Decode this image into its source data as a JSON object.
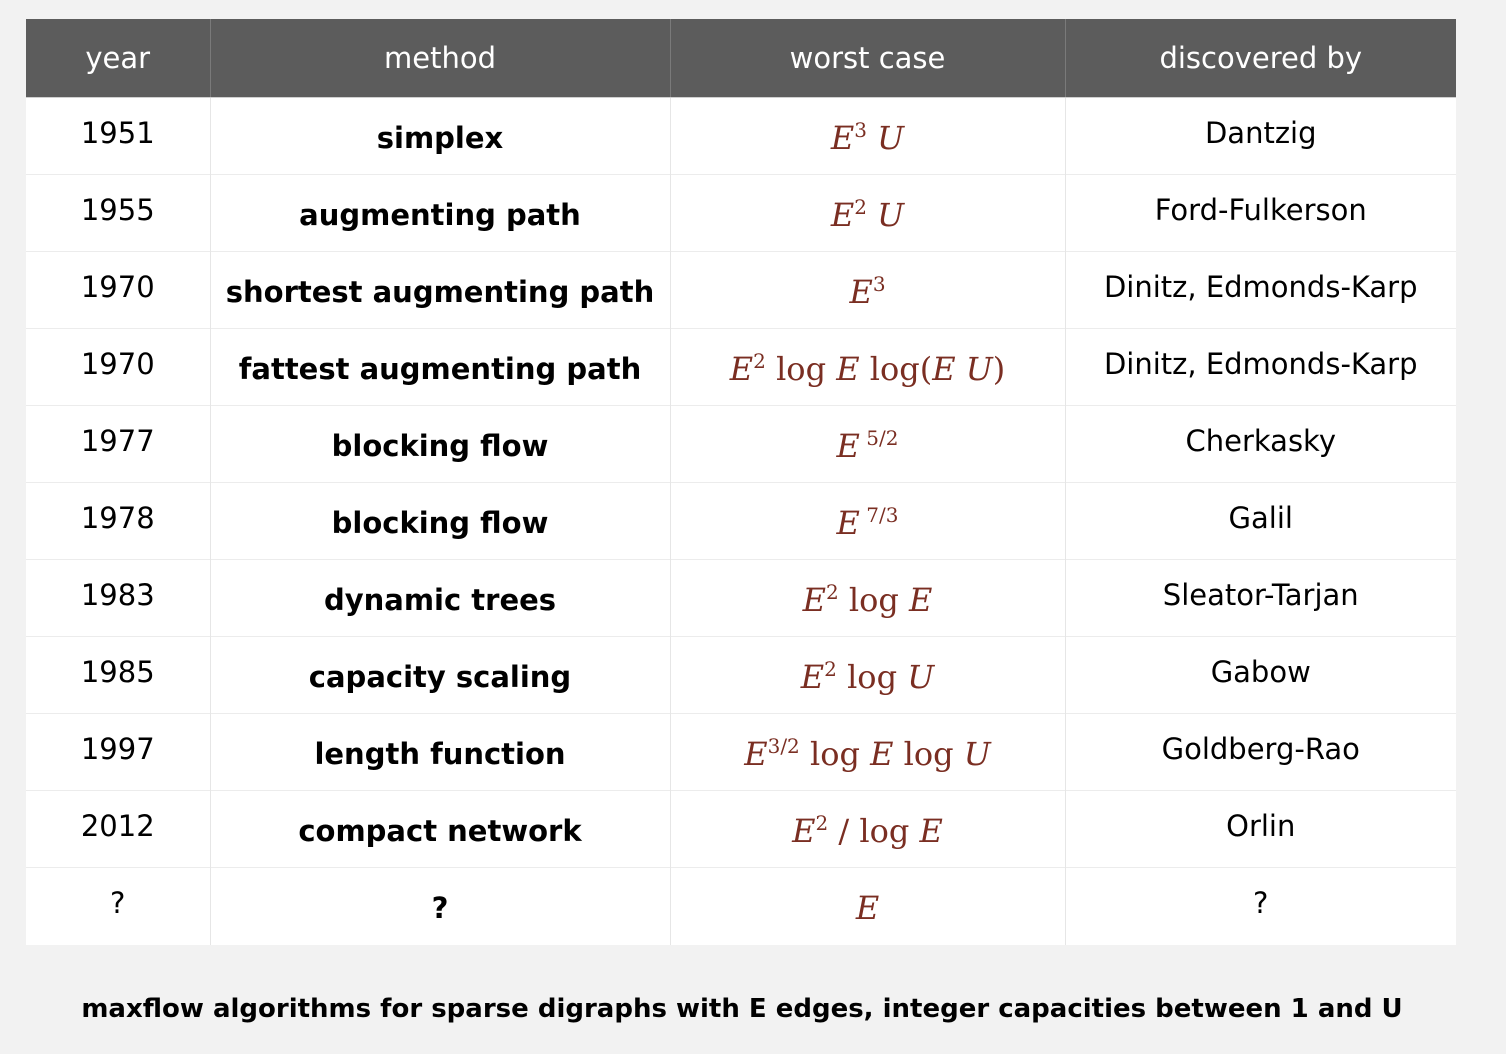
{
  "table": {
    "headers": [
      "year",
      "method",
      "worst case",
      "discovered by"
    ],
    "rows": [
      {
        "year": "1951",
        "method": "simplex",
        "worst_case": [
          {
            "t": "E",
            "i": true
          },
          {
            "t": "3",
            "s": true
          },
          {
            "t": " "
          },
          {
            "t": "U",
            "i": true
          }
        ],
        "discovered_by": "Dantzig"
      },
      {
        "year": "1955",
        "method": "augmenting path",
        "worst_case": [
          {
            "t": "E",
            "i": true
          },
          {
            "t": "2",
            "s": true
          },
          {
            "t": " "
          },
          {
            "t": "U",
            "i": true
          }
        ],
        "discovered_by": "Ford-Fulkerson"
      },
      {
        "year": "1970",
        "method": "shortest augmenting path",
        "worst_case": [
          {
            "t": "E",
            "i": true
          },
          {
            "t": "3",
            "s": true
          }
        ],
        "discovered_by": "Dinitz, Edmonds-Karp"
      },
      {
        "year": "1970",
        "method": "fattest augmenting path",
        "worst_case": [
          {
            "t": "E",
            "i": true
          },
          {
            "t": "2",
            "s": true
          },
          {
            "t": " log "
          },
          {
            "t": "E",
            "i": true
          },
          {
            "t": " log("
          },
          {
            "t": "E U",
            "i": true
          },
          {
            "t": ")"
          }
        ],
        "discovered_by": "Dinitz, Edmonds-Karp"
      },
      {
        "year": "1977",
        "method": "blocking flow",
        "worst_case": [
          {
            "t": "E",
            "i": true
          },
          {
            "t": " 5/2",
            "s": true
          }
        ],
        "discovered_by": "Cherkasky"
      },
      {
        "year": "1978",
        "method": "blocking flow",
        "worst_case": [
          {
            "t": "E",
            "i": true
          },
          {
            "t": " 7/3",
            "s": true
          }
        ],
        "discovered_by": "Galil"
      },
      {
        "year": "1983",
        "method": "dynamic trees",
        "worst_case": [
          {
            "t": "E",
            "i": true
          },
          {
            "t": "2",
            "s": true
          },
          {
            "t": " log "
          },
          {
            "t": "E",
            "i": true
          }
        ],
        "discovered_by": "Sleator-Tarjan"
      },
      {
        "year": "1985",
        "method": "capacity scaling",
        "worst_case": [
          {
            "t": "E",
            "i": true
          },
          {
            "t": "2",
            "s": true
          },
          {
            "t": " log "
          },
          {
            "t": "U",
            "i": true
          }
        ],
        "discovered_by": "Gabow"
      },
      {
        "year": "1997",
        "method": "length function",
        "worst_case": [
          {
            "t": "E",
            "i": true
          },
          {
            "t": "3/2",
            "s": true
          },
          {
            "t": " log "
          },
          {
            "t": "E",
            "i": true
          },
          {
            "t": " log "
          },
          {
            "t": "U",
            "i": true
          }
        ],
        "discovered_by": "Goldberg-Rao"
      },
      {
        "year": "2012",
        "method": "compact network",
        "worst_case": [
          {
            "t": "E",
            "i": true
          },
          {
            "t": "2",
            "s": true
          },
          {
            "t": " / log "
          },
          {
            "t": "E",
            "i": true
          }
        ],
        "discovered_by": "Orlin"
      },
      {
        "year": "?",
        "method": "?",
        "worst_case": [
          {
            "t": "E",
            "i": true
          }
        ],
        "discovered_by": "?"
      }
    ]
  },
  "caption": "maxflow algorithms for sparse digraphs with E edges, integer capacities between 1 and U",
  "colors": {
    "header_bg": "#5c5c5c",
    "header_text": "#ffffff",
    "formula_text": "#7a2e22",
    "page_bg": "#f2f2f2",
    "table_bg": "#ffffff"
  }
}
